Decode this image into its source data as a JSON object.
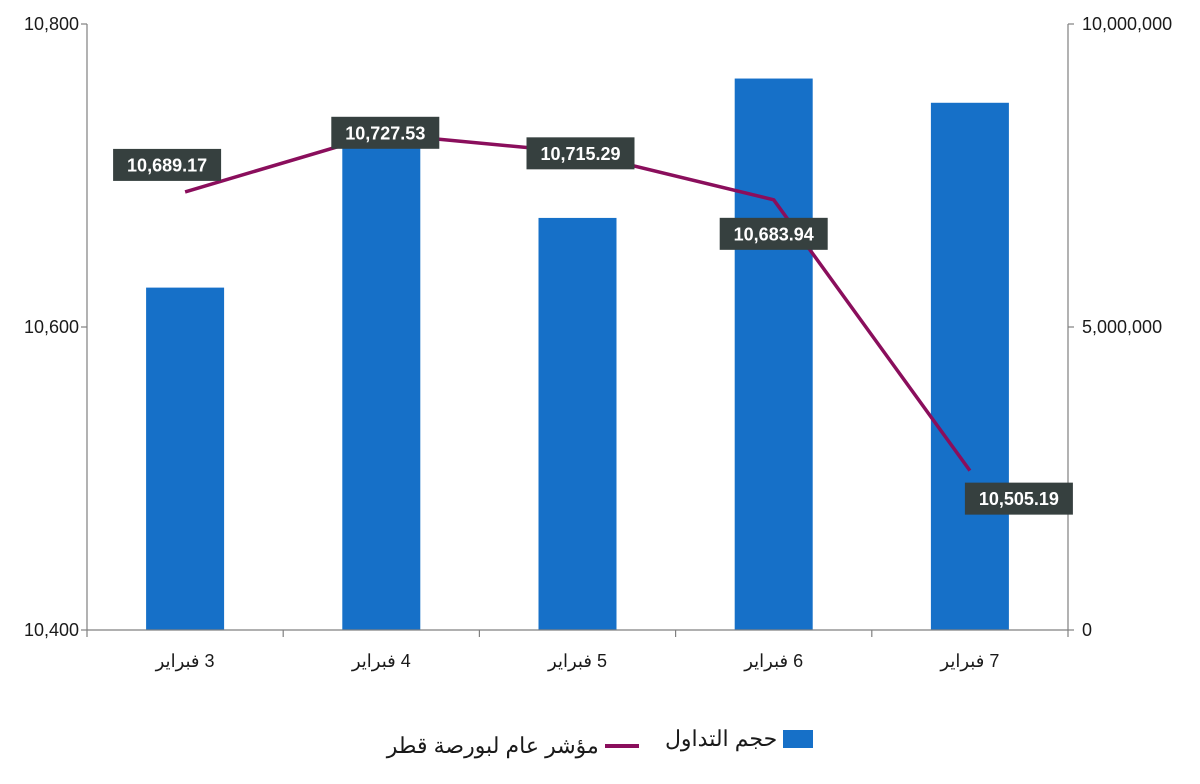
{
  "chart_data": {
    "type": "bar+line",
    "categories": [
      "3 فبراير",
      "4 فبراير",
      "5 فبراير",
      "6 فبراير",
      "7 فبراير"
    ],
    "series": [
      {
        "name": "حجم التداول",
        "type": "bar",
        "axis": "right",
        "color": "#1670C8",
        "values": [
          5650000,
          8400000,
          6800000,
          9100000,
          8700000
        ]
      },
      {
        "name": "مؤشر عام لبورصة قطر",
        "type": "line",
        "axis": "left",
        "color": "#8A0E5C",
        "values": [
          10689.17,
          10727.53,
          10715.29,
          10683.94,
          10505.19
        ],
        "labels": [
          "10,689.17",
          "10,727.53",
          "10,715.29",
          "10,683.94",
          "10,505.19"
        ]
      }
    ],
    "y_left": {
      "ylim": [
        10400,
        10800
      ],
      "ticks": [
        "10,400",
        "10,600",
        "10,800"
      ],
      "tick_values": [
        10400,
        10600,
        10800
      ]
    },
    "y_right": {
      "ylim": [
        0,
        10000000
      ],
      "ticks": [
        "0",
        "5,000,000",
        "10,000,000"
      ],
      "tick_values": [
        0,
        5000000,
        10000000
      ]
    },
    "grid": false,
    "legend_position": "bottom",
    "label_box_color": "#36403F"
  }
}
